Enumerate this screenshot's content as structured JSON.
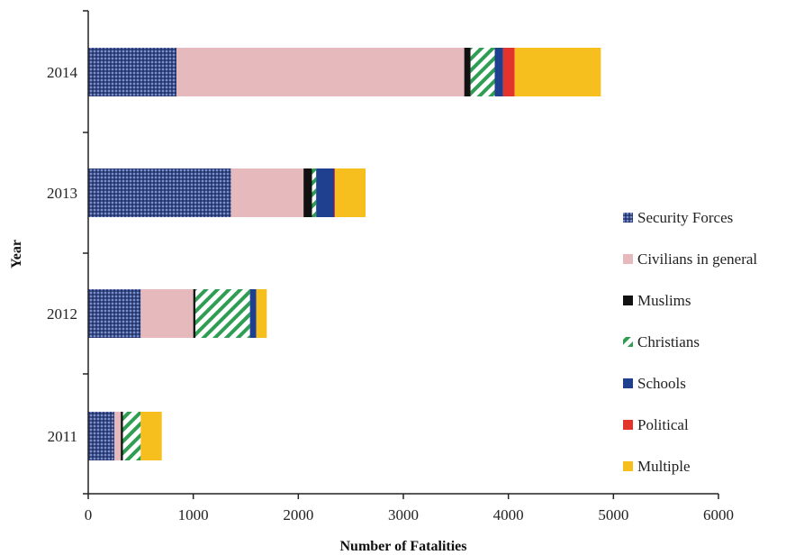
{
  "chart_data": {
    "type": "bar",
    "orientation": "horizontal",
    "stacked": true,
    "title": "",
    "xlabel": "Number of Fatalities",
    "ylabel": "Year",
    "xlim": [
      0,
      6000
    ],
    "xticks": [
      "0",
      "1000",
      "2000",
      "3000",
      "4000",
      "5000",
      "6000"
    ],
    "categories": [
      "2014",
      "2013",
      "2012",
      "2011"
    ],
    "legend_position": "right",
    "grid": false,
    "series": [
      {
        "name": "Security Forces",
        "color": "#3b4e8c",
        "pattern": "dots",
        "values": [
          840,
          1360,
          500,
          250
        ]
      },
      {
        "name": "Civilians in general",
        "color": "#e6b9bc",
        "pattern": "solid",
        "values": [
          2740,
          690,
          500,
          60
        ]
      },
      {
        "name": "Muslims",
        "color": "#111111",
        "pattern": "solid",
        "values": [
          60,
          80,
          20,
          20
        ]
      },
      {
        "name": "Christians",
        "color": "#2f9e52",
        "pattern": "diagonal",
        "values": [
          230,
          40,
          520,
          170
        ]
      },
      {
        "name": "Schools",
        "color": "#1f3f8f",
        "pattern": "solid",
        "values": [
          80,
          170,
          60,
          0
        ]
      },
      {
        "name": "Political",
        "color": "#e3342c",
        "pattern": "solid",
        "values": [
          110,
          10,
          0,
          0
        ]
      },
      {
        "name": "Multiple",
        "color": "#f7bf1e",
        "pattern": "solid",
        "values": [
          820,
          290,
          100,
          200
        ]
      }
    ]
  }
}
